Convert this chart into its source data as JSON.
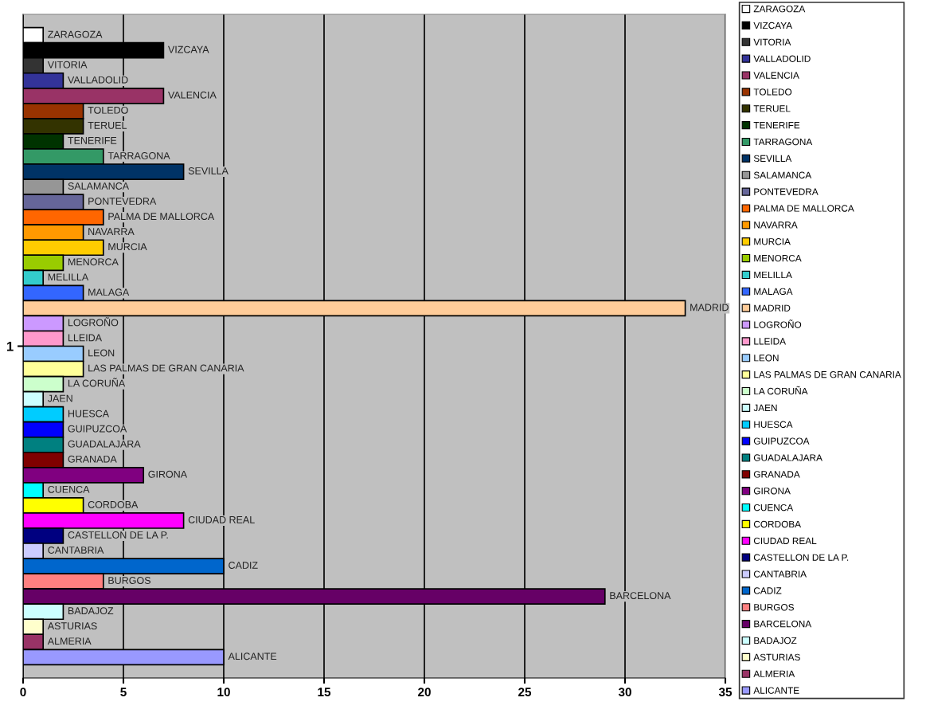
{
  "chart_data": {
    "type": "bar",
    "orientation": "horizontal",
    "categories": [
      "1"
    ],
    "series": [
      {
        "name": "ZARAGOZA",
        "color": "#ffffff",
        "values": [
          1
        ],
        "value_labels": [
          "ZARAGOZA"
        ]
      },
      {
        "name": "VIZCAYA",
        "color": "#000000",
        "values": [
          7
        ],
        "value_labels": [
          "VIZCAYA"
        ]
      },
      {
        "name": "VITORIA",
        "color": "#333333",
        "values": [
          1
        ],
        "value_labels": [
          "VITORIA"
        ]
      },
      {
        "name": "VALLADOLID",
        "color": "#333399",
        "values": [
          2
        ],
        "value_labels": [
          "VALLADOLID"
        ]
      },
      {
        "name": "VALENCIA",
        "color": "#993366",
        "values": [
          7
        ],
        "value_labels": [
          "VALENCIA"
        ]
      },
      {
        "name": "TOLEDO",
        "color": "#993300",
        "values": [
          3
        ],
        "value_labels": [
          "TOLEDO"
        ]
      },
      {
        "name": "TERUEL",
        "color": "#333300",
        "values": [
          3
        ],
        "value_labels": [
          "TERUEL"
        ]
      },
      {
        "name": "TENERIFE",
        "color": "#003300",
        "values": [
          2
        ],
        "value_labels": [
          "TENERIFE"
        ]
      },
      {
        "name": "TARRAGONA",
        "color": "#339966",
        "values": [
          4
        ],
        "value_labels": [
          "TARRAGONA"
        ]
      },
      {
        "name": "SEVILLA",
        "color": "#003366",
        "values": [
          8
        ],
        "value_labels": [
          "SEVILLA"
        ]
      },
      {
        "name": "SALAMANCA",
        "color": "#969696",
        "values": [
          2
        ],
        "value_labels": [
          "SALAMANCA"
        ]
      },
      {
        "name": "PONTEVEDRA",
        "color": "#666699",
        "values": [
          3
        ],
        "value_labels": [
          "PONTEVEDRA"
        ]
      },
      {
        "name": "PALMA DE MALLORCA",
        "color": "#ff6600",
        "values": [
          4
        ],
        "value_labels": [
          "PALMA DE MALLORCA"
        ]
      },
      {
        "name": "NAVARRA",
        "color": "#ff9900",
        "values": [
          3
        ],
        "value_labels": [
          "NAVARRA"
        ]
      },
      {
        "name": "MURCIA",
        "color": "#ffcc00",
        "values": [
          4
        ],
        "value_labels": [
          "MURCIA"
        ]
      },
      {
        "name": "MENORCA",
        "color": "#99cc00",
        "values": [
          2
        ],
        "value_labels": [
          "MENORCA"
        ]
      },
      {
        "name": "MELILLA",
        "color": "#33cccc",
        "values": [
          1
        ],
        "value_labels": [
          "MELILLA"
        ]
      },
      {
        "name": "MALAGA",
        "color": "#3366ff",
        "values": [
          3
        ],
        "value_labels": [
          "MALAGA"
        ]
      },
      {
        "name": "MADRID",
        "color": "#ffcc99",
        "values": [
          33
        ],
        "value_labels": [
          "MADRID"
        ]
      },
      {
        "name": "LOGROÑO",
        "color": "#cc99ff",
        "values": [
          2
        ],
        "value_labels": [
          "LOGROÑO"
        ]
      },
      {
        "name": "LLEIDA",
        "color": "#ff99cc",
        "values": [
          2
        ],
        "value_labels": [
          "LLEIDA"
        ]
      },
      {
        "name": "LEON",
        "color": "#99ccff",
        "values": [
          3
        ],
        "value_labels": [
          "LEON"
        ]
      },
      {
        "name": "LAS PALMAS DE GRAN CANARIA",
        "color": "#ffff99",
        "values": [
          3
        ],
        "value_labels": [
          "LAS PALMAS DE GRAN CANARIA"
        ]
      },
      {
        "name": "LA CORUÑA",
        "color": "#ccffcc",
        "values": [
          2
        ],
        "value_labels": [
          "LA CORUÑA"
        ]
      },
      {
        "name": "JAEN",
        "color": "#ccffff",
        "values": [
          1
        ],
        "value_labels": [
          "JAEN"
        ]
      },
      {
        "name": "HUESCA",
        "color": "#00ccff",
        "values": [
          2
        ],
        "value_labels": [
          "HUESCA"
        ]
      },
      {
        "name": "GUIPUZCOA",
        "color": "#0000ff",
        "values": [
          2
        ],
        "value_labels": [
          "GUIPUZCOA"
        ]
      },
      {
        "name": "GUADALAJARA",
        "color": "#008080",
        "values": [
          2
        ],
        "value_labels": [
          "GUADALAJARA"
        ]
      },
      {
        "name": "GRANADA",
        "color": "#800000",
        "values": [
          2
        ],
        "value_labels": [
          "GRANADA"
        ]
      },
      {
        "name": "GIRONA",
        "color": "#800080",
        "values": [
          6
        ],
        "value_labels": [
          "GIRONA"
        ]
      },
      {
        "name": "CUENCA",
        "color": "#00ffff",
        "values": [
          1
        ],
        "value_labels": [
          "CUENCA"
        ]
      },
      {
        "name": "CORDOBA",
        "color": "#ffff00",
        "values": [
          3
        ],
        "value_labels": [
          "CORDOBA"
        ]
      },
      {
        "name": "CIUDAD REAL",
        "color": "#ff00ff",
        "values": [
          8
        ],
        "value_labels": [
          "CIUDAD REAL"
        ]
      },
      {
        "name": "CASTELLON DE LA P.",
        "color": "#000080",
        "values": [
          2
        ],
        "value_labels": [
          "CASTELLON DE LA P."
        ]
      },
      {
        "name": "CANTABRIA",
        "color": "#ccccff",
        "values": [
          1
        ],
        "value_labels": [
          "CANTABRIA"
        ]
      },
      {
        "name": "CADIZ",
        "color": "#0066cc",
        "values": [
          10
        ],
        "value_labels": [
          "CADIZ"
        ]
      },
      {
        "name": "BURGOS",
        "color": "#ff8080",
        "values": [
          4
        ],
        "value_labels": [
          "BURGOS"
        ]
      },
      {
        "name": "BARCELONA",
        "color": "#660066",
        "values": [
          29
        ],
        "value_labels": [
          "BARCELONA"
        ]
      },
      {
        "name": "BADAJOZ",
        "color": "#ccffff",
        "values": [
          2
        ],
        "value_labels": [
          "BADAJOZ"
        ]
      },
      {
        "name": "ASTURIAS",
        "color": "#ffffcc",
        "values": [
          1
        ],
        "value_labels": [
          "ASTURIAS"
        ]
      },
      {
        "name": "ALMERIA",
        "color": "#993366",
        "values": [
          1
        ],
        "value_labels": [
          "ALMERIA"
        ]
      },
      {
        "name": "ALICANTE",
        "color": "#9999ff",
        "values": [
          10
        ],
        "value_labels": [
          "ALICANTE"
        ]
      }
    ],
    "xlim": [
      0,
      35
    ],
    "xticks": [
      0,
      5,
      10,
      15,
      20,
      25,
      30,
      35
    ],
    "grid": "x",
    "legend": "right"
  }
}
